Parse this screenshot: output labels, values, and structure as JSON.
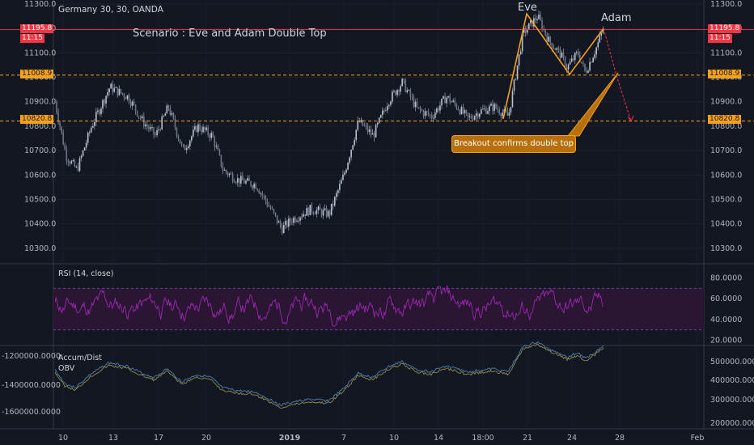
{
  "header": {
    "symbol": "Germany 30, 30, OANDA",
    "scenario_title": "Scenario : Eve and Adam Double Top"
  },
  "annotations": {
    "eve_label": "Eve",
    "adam_label": "Adam",
    "breakout_note": "Breakout confirms double top"
  },
  "price_tags": {
    "last_price_left": "11195.8",
    "countdown_left": "11:15",
    "last_price_right": "11195.8",
    "countdown_right": "11:15",
    "upper_level_left": "11008.9",
    "upper_level_right": "11008.9",
    "lower_level_left": "10820.8",
    "lower_level_right": "10820.8"
  },
  "indicators": {
    "rsi_label": "RSI (14, close)",
    "ad_label": "Accum/Dist",
    "obv_label": "OBV"
  },
  "colors": {
    "background": "#131722",
    "candle": "#9aa3b5",
    "rsi_line": "#9c27b0",
    "rsi_band": "#2a1633",
    "orange_level": "#f7a11a",
    "red_level": "#f23645",
    "ad_line": "#8d8a4c",
    "obv_line": "#4f7fae"
  },
  "chart_data": {
    "type": "line",
    "price_axis": {
      "ticks": [
        "11300.0",
        "11200.0",
        "11100.0",
        "11000.0",
        "10900.0",
        "10800.0",
        "10700.0",
        "10600.0",
        "10500.0",
        "10400.0",
        "10300.0"
      ],
      "min": 10220,
      "max": 11300
    },
    "x_axis": {
      "ticks": [
        "10",
        "13",
        "17",
        "20",
        "2019",
        "7",
        "10",
        "14",
        "18:00",
        "21",
        "24",
        "28",
        "Feb"
      ]
    },
    "levels": {
      "last_price": 11195.8,
      "neckline_upper": 11008.9,
      "target_lower": 10820.8
    },
    "price_path": {
      "x_index": [
        0,
        6,
        12,
        20,
        30,
        40,
        48,
        55,
        62,
        70,
        78,
        86,
        92,
        100,
        110,
        118,
        124,
        130,
        140,
        150,
        158,
        166,
        174,
        182,
        190,
        198,
        206,
        214,
        220,
        226,
        232,
        240,
        248,
        256,
        264,
        270,
        276,
        280,
        286,
        290,
        296,
        300
      ],
      "close": [
        10900,
        10680,
        10620,
        10800,
        10960,
        10920,
        10820,
        10760,
        10880,
        10700,
        10800,
        10760,
        10620,
        10580,
        10560,
        10460,
        10380,
        10420,
        10460,
        10440,
        10600,
        10820,
        10760,
        10900,
        10980,
        10870,
        10840,
        10920,
        10880,
        10830,
        10860,
        10880,
        10840,
        11180,
        11250,
        11150,
        11100,
        11040,
        11100,
        11020,
        11120,
        11200
      ]
    },
    "pattern": {
      "left_points": [
        "start",
        "eve_peak",
        "trough",
        "adam_peak",
        "breakout",
        "target"
      ],
      "values": [
        10830,
        11260,
        11012,
        11200,
        11008,
        10820
      ]
    },
    "rsi": {
      "ticks": [
        "80.0000",
        "60.0000",
        "40.0000",
        "20.0000"
      ],
      "min": 15,
      "max": 92,
      "upper_band": 70,
      "lower_band": 30
    },
    "ad_obv": {
      "left_ticks": [
        "-1200000.0000",
        "-1400000.0000",
        "-1600000.0000"
      ],
      "right_ticks": [
        "500000.0000",
        "400000.0000",
        "300000.0000",
        "200000.0000"
      ]
    }
  }
}
